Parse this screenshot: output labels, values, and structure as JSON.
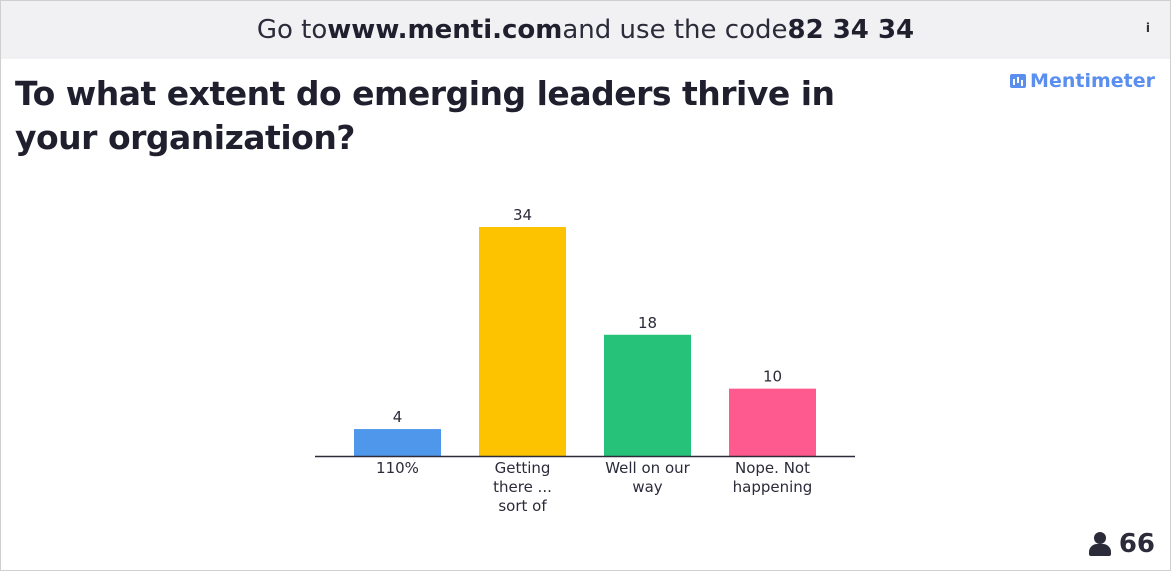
{
  "join_bar": {
    "prefix": "Go to ",
    "url": "www.menti.com",
    "middle": " and use the code ",
    "code": "82 34 34"
  },
  "info_icon": "i",
  "brand": {
    "name": "Mentimeter"
  },
  "question": "To what extent do emerging leaders thrive in your organization?",
  "participants": {
    "count": "66",
    "icon": "person-icon"
  },
  "chart_data": {
    "type": "bar",
    "categories": [
      "110%",
      "Getting there ... sort of",
      "Well on our way",
      "Nope. Not happening"
    ],
    "category_lines": [
      [
        "110%"
      ],
      [
        "Getting",
        "there ...",
        "sort of"
      ],
      [
        "Well on our",
        "way"
      ],
      [
        "Nope. Not",
        "happening"
      ]
    ],
    "values": [
      4,
      34,
      18,
      10
    ],
    "colors": [
      "#4f97eb",
      "#fdc300",
      "#27c27a",
      "#ff5a8f"
    ],
    "title": "",
    "xlabel": "",
    "ylabel": "",
    "ylim": [
      0,
      34
    ],
    "grid": false,
    "legend": "none"
  }
}
